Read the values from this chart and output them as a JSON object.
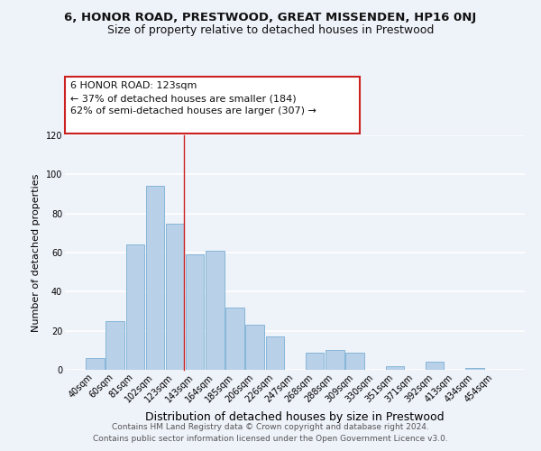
{
  "title": "6, HONOR ROAD, PRESTWOOD, GREAT MISSENDEN, HP16 0NJ",
  "subtitle": "Size of property relative to detached houses in Prestwood",
  "xlabel": "Distribution of detached houses by size in Prestwood",
  "ylabel": "Number of detached properties",
  "bar_labels": [
    "40sqm",
    "60sqm",
    "81sqm",
    "102sqm",
    "123sqm",
    "143sqm",
    "164sqm",
    "185sqm",
    "206sqm",
    "226sqm",
    "247sqm",
    "268sqm",
    "288sqm",
    "309sqm",
    "330sqm",
    "351sqm",
    "371sqm",
    "392sqm",
    "413sqm",
    "434sqm",
    "454sqm"
  ],
  "bar_values": [
    6,
    25,
    64,
    94,
    75,
    59,
    61,
    32,
    23,
    17,
    0,
    9,
    10,
    9,
    0,
    2,
    0,
    4,
    0,
    1,
    0
  ],
  "bar_color": "#b8d0e8",
  "bar_edge_color": "#7aafd4",
  "highlight_bar_index": 4,
  "annotation_line1": "6 HONOR ROAD: 123sqm",
  "annotation_line2": "← 37% of detached houses are smaller (184)",
  "annotation_line3": "62% of semi-detached houses are larger (307) →",
  "ylim": [
    0,
    120
  ],
  "yticks": [
    0,
    20,
    40,
    60,
    80,
    100,
    120
  ],
  "bg_color": "#eef2f9",
  "footer_line1": "Contains HM Land Registry data © Crown copyright and database right 2024.",
  "footer_line2": "Contains public sector information licensed under the Open Government Licence v3.0.",
  "grid_color": "#ffffff",
  "title_fontsize": 9.5,
  "subtitle_fontsize": 9,
  "xlabel_fontsize": 9,
  "ylabel_fontsize": 8,
  "tick_fontsize": 7,
  "annotation_fontsize": 8,
  "footer_fontsize": 6.5
}
